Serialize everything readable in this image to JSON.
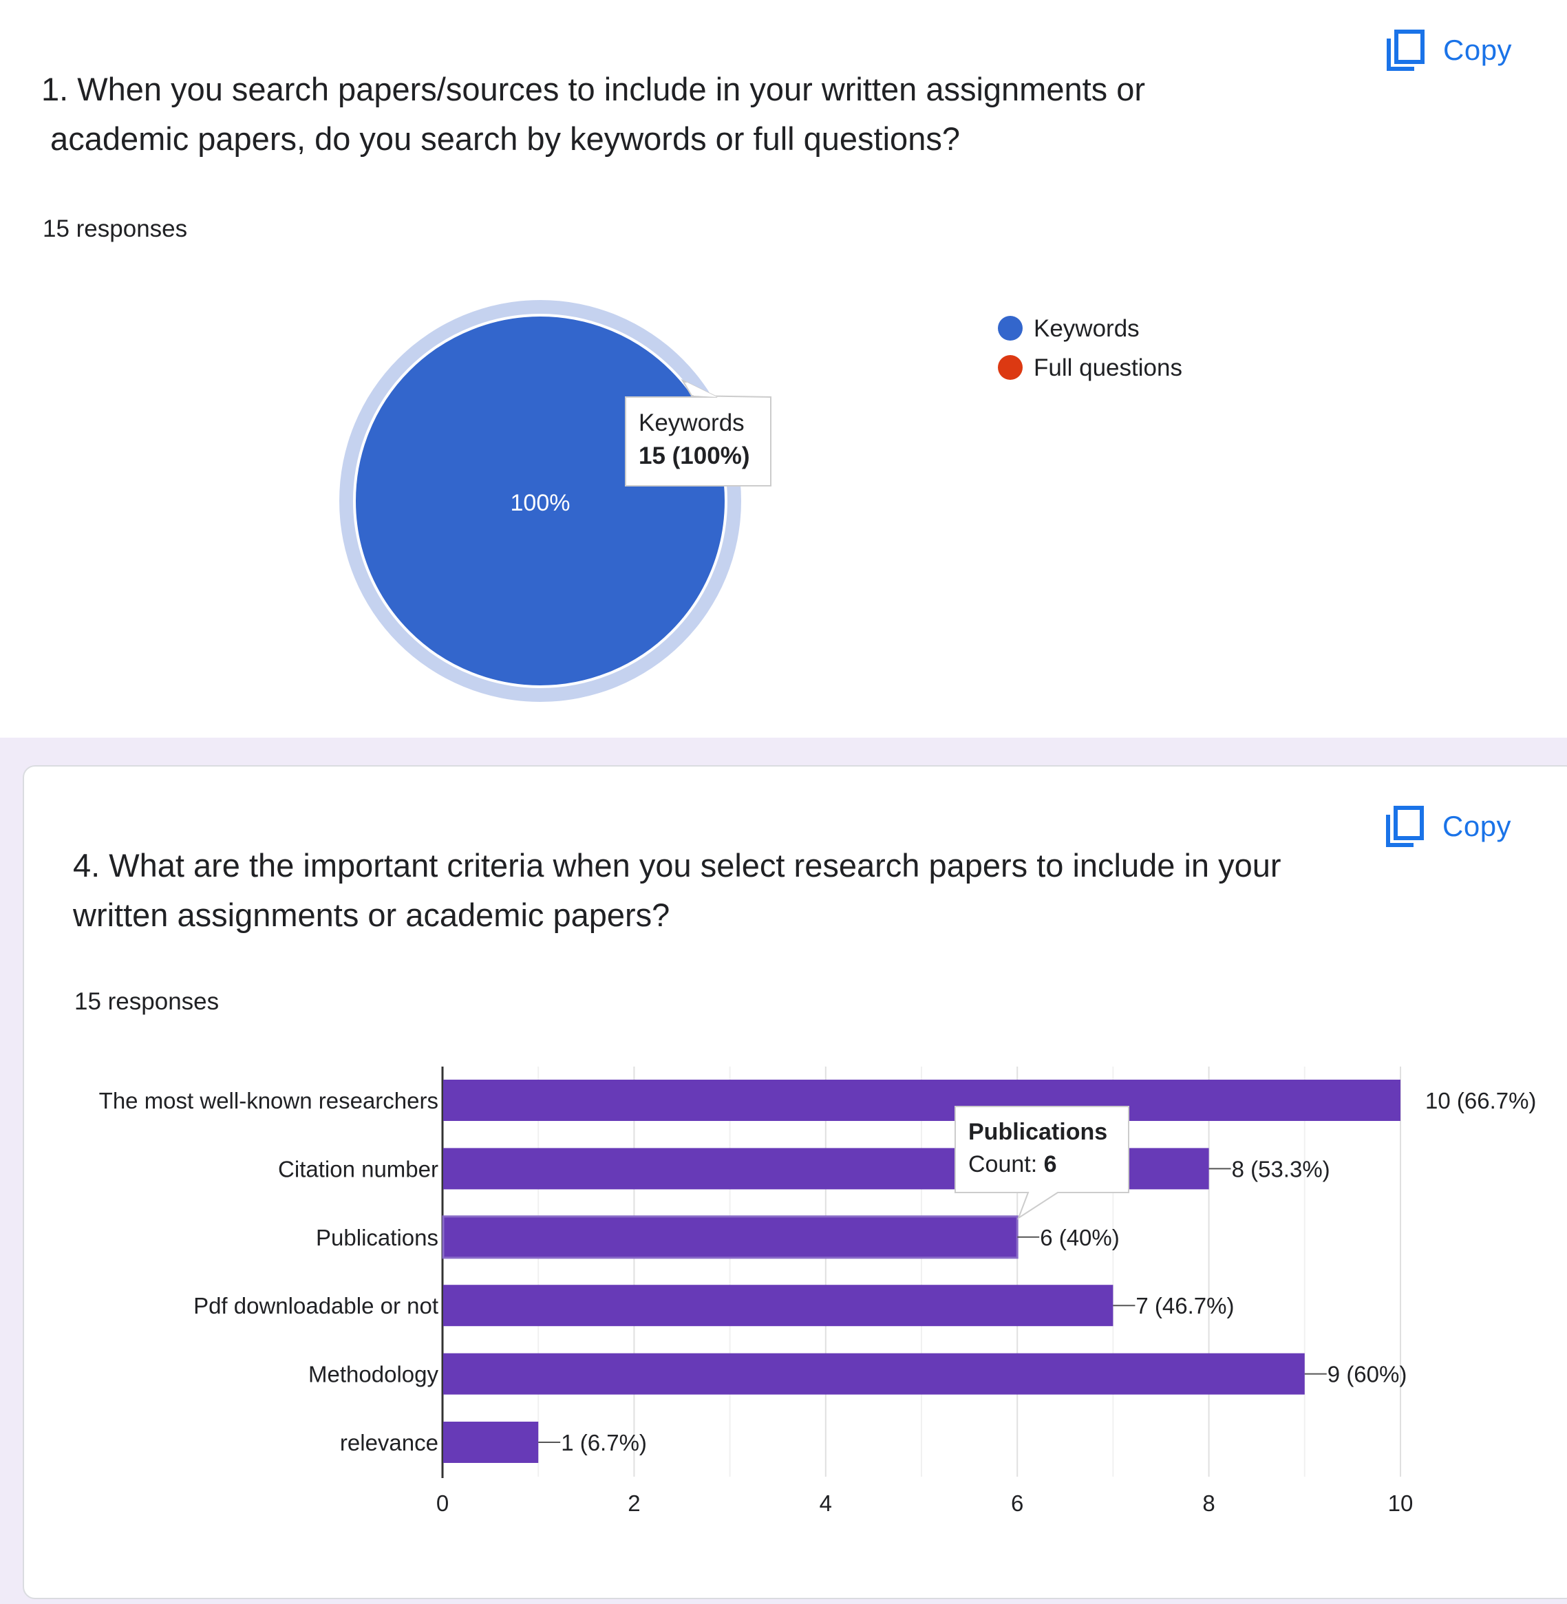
{
  "questions": [
    {
      "title_line1": "1. When you search papers/sources to include in your written assignments or",
      "title_line2": " academic papers, do you search by keywords or full questions?",
      "responses": "15 responses",
      "copy_label": "Copy"
    },
    {
      "title_line1": "4. What are the important criteria when you select research papers to include in your",
      "title_line2": "written assignments or academic papers?",
      "responses": "15 responses",
      "copy_label": "Copy"
    }
  ],
  "colors": {
    "pie_blue": "#3366cc",
    "pie_halo": "#c5d2ef",
    "pie_red": "#dc3912",
    "bar_purple": "#673ab7",
    "accent": "#1a73e8"
  },
  "pie_tooltip": {
    "label": "Keywords",
    "value": "15 (100%)"
  },
  "bar_tooltip": {
    "title": "Publications",
    "count_label": "Count: ",
    "count_value": "6"
  },
  "chart_data": [
    {
      "type": "pie",
      "title": "1. When you search papers/sources to include in your written assignments or academic papers, do you search by keywords or full questions?",
      "slices": [
        {
          "label": "Keywords",
          "value": 15,
          "percent_label": "100%",
          "color": "#3366cc"
        },
        {
          "label": "Full questions",
          "value": 0,
          "percent_label": "",
          "color": "#dc3912"
        }
      ],
      "legend": [
        "Keywords",
        "Full questions"
      ],
      "legend_position": "right"
    },
    {
      "type": "bar",
      "orientation": "horizontal",
      "title": "4. What are the important criteria when you select research papers to include in your written assignments or academic papers?",
      "categories": [
        "The most well-known researchers",
        "Citation number",
        "Publications",
        "Pdf downloadable or not",
        "Methodology",
        "relevance"
      ],
      "values": [
        10,
        8,
        6,
        7,
        9,
        1
      ],
      "data_labels": [
        "10 (66.7%)",
        "8 (53.3%)",
        "6 (40%)",
        "7 (46.7%)",
        "9 (60%)",
        "1 (6.7%)"
      ],
      "xlim": [
        0,
        10
      ],
      "xticks": [
        "0",
        "2",
        "4",
        "6",
        "8",
        "10"
      ],
      "grid": true,
      "color": "#673ab7"
    }
  ]
}
